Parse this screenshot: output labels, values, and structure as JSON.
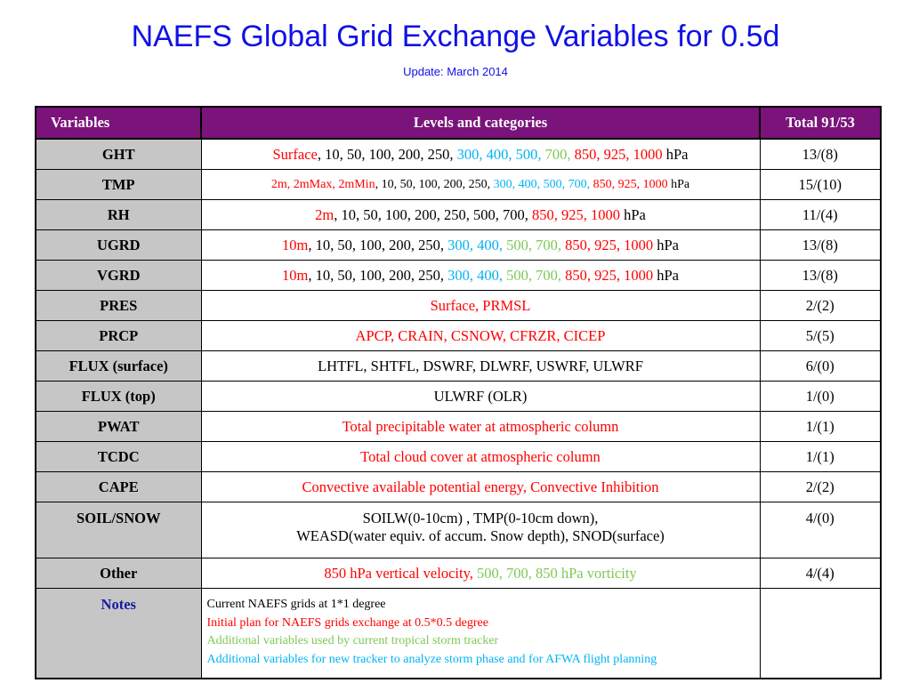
{
  "title": "NAEFS Global Grid Exchange Variables for 0.5d",
  "subtitle": "Update: March 2014",
  "header": {
    "variables": "Variables",
    "levels": "Levels and categories",
    "total": "Total  91/53"
  },
  "rows": [
    {
      "var": "GHT",
      "total": "13/(8)",
      "segs": [
        [
          "Surface",
          "r"
        ],
        [
          ", 10, 50, 100, 200, 250, ",
          "k"
        ],
        [
          "300, 400, 500, ",
          "c"
        ],
        [
          "700, ",
          "g"
        ],
        [
          "850, 925, 1000",
          "r"
        ],
        [
          " hPa",
          "k"
        ]
      ]
    },
    {
      "var": "TMP",
      "total": "15/(10)",
      "small": true,
      "segs": [
        [
          "2m, 2mMax, 2mMin",
          "r"
        ],
        [
          ", 10, 50, 100, 200, 250, ",
          "k"
        ],
        [
          "300, 400, 500, 700, ",
          "c"
        ],
        [
          "850, 925, 1000",
          "r"
        ],
        [
          " hPa",
          "k"
        ]
      ]
    },
    {
      "var": "RH",
      "total": "11/(4)",
      "segs": [
        [
          "2m",
          "r"
        ],
        [
          ", 10, 50, 100, 200, 250, 500, 700, ",
          "k"
        ],
        [
          "850, 925, 1000",
          "r"
        ],
        [
          " hPa",
          "k"
        ]
      ]
    },
    {
      "var": "UGRD",
      "total": "13/(8)",
      "segs": [
        [
          "10m",
          "r"
        ],
        [
          ", 10, 50, 100, 200, 250, ",
          "k"
        ],
        [
          "300, 400, ",
          "c"
        ],
        [
          " 500, 700, ",
          "g"
        ],
        [
          "850, 925, 1000",
          "r"
        ],
        [
          " hPa",
          "k"
        ]
      ]
    },
    {
      "var": "VGRD",
      "total": "13/(8)",
      "segs": [
        [
          "10m",
          "r"
        ],
        [
          ", 10, 50, 100, 200, 250, ",
          "k"
        ],
        [
          "300, 400, ",
          "c"
        ],
        [
          "500, 700, ",
          "g"
        ],
        [
          "850, 925, 1000",
          "r"
        ],
        [
          " hPa",
          "k"
        ]
      ]
    },
    {
      "var": "PRES",
      "total": "2/(2)",
      "segs": [
        [
          "Surface, PRMSL",
          "r"
        ]
      ]
    },
    {
      "var": "PRCP",
      "total": "5/(5)",
      "segs": [
        [
          "APCP, CRAIN, CSNOW, CFRZR, CICEP",
          "r"
        ]
      ]
    },
    {
      "var": "FLUX (surface)",
      "total": "6/(0)",
      "segs": [
        [
          "LHTFL, SHTFL, DSWRF, DLWRF, USWRF, ULWRF",
          "k"
        ]
      ]
    },
    {
      "var": "FLUX (top)",
      "total": "1/(0)",
      "segs": [
        [
          "ULWRF (OLR)",
          "k"
        ]
      ]
    },
    {
      "var": "PWAT",
      "total": "1/(1)",
      "segs": [
        [
          "Total precipitable water at atmospheric column",
          "r"
        ]
      ]
    },
    {
      "var": "TCDC",
      "total": "1/(1)",
      "segs": [
        [
          "Total cloud cover at atmospheric column",
          "r"
        ]
      ]
    },
    {
      "var": "CAPE",
      "total": "2/(2)",
      "segs": [
        [
          "Convective available potential energy, Convective Inhibition",
          "r"
        ]
      ]
    },
    {
      "var": "SOIL/SNOW",
      "total": "4/(0)",
      "tall": true,
      "segs": [
        [
          "SOILW(0-10cm) , TMP(0-10cm down),",
          "k"
        ],
        [
          "\n",
          "k"
        ],
        [
          "WEASD(water equiv. of accum. Snow depth),  SNOD(surface)",
          "k"
        ]
      ]
    },
    {
      "var": "Other",
      "total": "4/(4)",
      "segs": [
        [
          "850 hPa  vertical velocity, ",
          "r"
        ],
        [
          "500, 700, 850 hPa vorticity",
          "g"
        ]
      ]
    }
  ],
  "notes": {
    "label": "Notes",
    "lines": [
      [
        "Current NAEFS grids at 1*1 degree",
        "k"
      ],
      [
        "Initial plan for NAEFS grids exchange at 0.5*0.5 degree",
        "r"
      ],
      [
        "Additional variables used by current tropical storm tracker",
        "g"
      ],
      [
        "Additional variables for new tracker to analyze storm phase and for AFWA flight planning",
        "c"
      ]
    ],
    "total": ""
  }
}
